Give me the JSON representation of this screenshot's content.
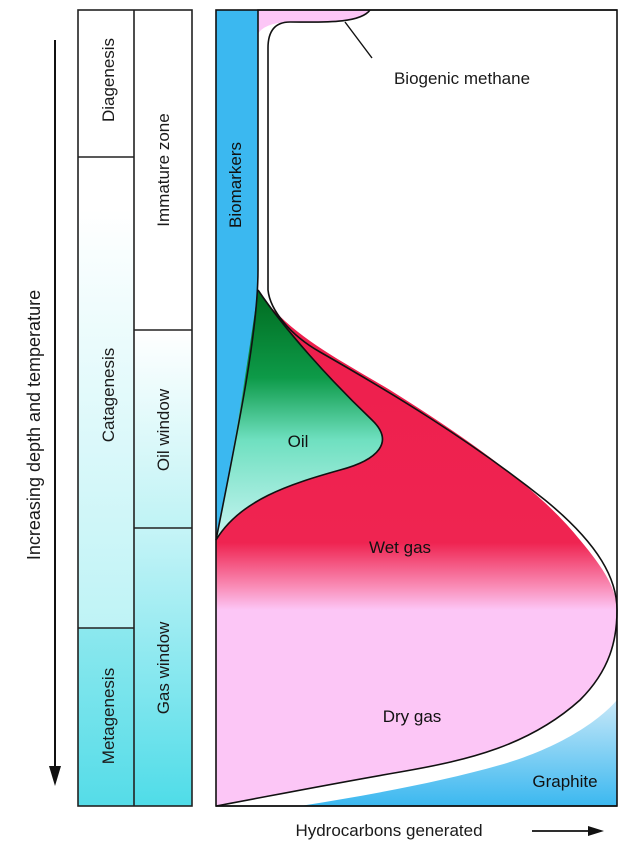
{
  "axis": {
    "vertical_label": "Increasing depth and temperature",
    "horizontal_label": "Hydrocarbons generated"
  },
  "stages": {
    "diagenesis": "Diagenesis",
    "catagenesis": "Catagenesis",
    "metagenesis": "Metagenesis"
  },
  "zones": {
    "immature": "Immature zone",
    "oil_window": "Oil window",
    "gas_window": "Gas window"
  },
  "products": {
    "biomarkers": "Biomarkers",
    "biogenic_methane": "Biogenic methane",
    "oil": "Oil",
    "wet_gas": "Wet gas",
    "dry_gas": "Dry gas",
    "graphite": "Graphite"
  },
  "colors": {
    "biomarkers": "#3bb8f0",
    "oil_dark": "#006a1f",
    "oil_light": "#b8f2ee",
    "wet_gas": "#ee1e4c",
    "dry_gas": "#fcc6f6",
    "graphite": "#3bb8f0",
    "cyan_band": "#63e2ec"
  }
}
